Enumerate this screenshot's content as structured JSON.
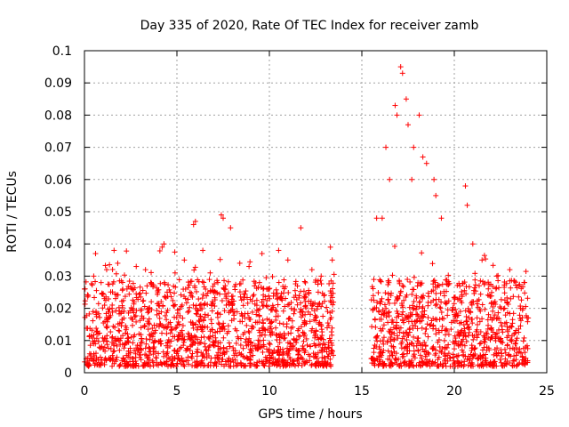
{
  "chart_data": {
    "type": "scatter",
    "title": "Day 335 of 2020, Rate Of TEC Index for receiver zamb",
    "xlabel": "GPS time / hours",
    "ylabel": "ROTI / TECUs",
    "xlim": [
      0,
      25
    ],
    "ylim": [
      0,
      0.1
    ],
    "xticks": [
      0,
      5,
      10,
      15,
      20,
      25
    ],
    "xtick_labels": [
      "0",
      "5",
      "10",
      "15",
      "20",
      "25"
    ],
    "yticks": [
      0,
      0.01,
      0.02,
      0.03,
      0.04,
      0.05,
      0.06,
      0.07,
      0.08,
      0.09,
      0.1
    ],
    "ytick_labels": [
      "0",
      "0.01",
      "0.02",
      "0.03",
      "0.04",
      "0.05",
      "0.06",
      "0.07",
      "0.08",
      "0.09",
      "0.1"
    ],
    "grid": true,
    "marker": "plus",
    "color": "#ff0000",
    "data_gap_hours": [
      13.5,
      15.5
    ],
    "series": [
      {
        "name": "ROTI",
        "points": [
          [
            0.2,
            0.024
          ],
          [
            0.5,
            0.03
          ],
          [
            0.6,
            0.037
          ],
          [
            0.9,
            0.028
          ],
          [
            1.2,
            0.032
          ],
          [
            1.6,
            0.038
          ],
          [
            1.8,
            0.034
          ],
          [
            2.3,
            0.026
          ],
          [
            2.8,
            0.033
          ],
          [
            3.3,
            0.032
          ],
          [
            3.6,
            0.028
          ],
          [
            4.2,
            0.039
          ],
          [
            4.3,
            0.04
          ],
          [
            4.9,
            0.031
          ],
          [
            5.4,
            0.035
          ],
          [
            5.9,
            0.046
          ],
          [
            6.0,
            0.047
          ],
          [
            6.4,
            0.038
          ],
          [
            6.8,
            0.031
          ],
          [
            7.4,
            0.049
          ],
          [
            7.5,
            0.048
          ],
          [
            7.9,
            0.045
          ],
          [
            8.4,
            0.034
          ],
          [
            8.9,
            0.033
          ],
          [
            9.6,
            0.037
          ],
          [
            10.5,
            0.038
          ],
          [
            11.0,
            0.035
          ],
          [
            11.7,
            0.045
          ],
          [
            12.3,
            0.032
          ],
          [
            12.8,
            0.03
          ],
          [
            13.3,
            0.039
          ],
          [
            13.4,
            0.035
          ],
          [
            15.8,
            0.048
          ],
          [
            16.1,
            0.048
          ],
          [
            16.3,
            0.07
          ],
          [
            16.5,
            0.06
          ],
          [
            16.8,
            0.083
          ],
          [
            16.9,
            0.08
          ],
          [
            17.1,
            0.095
          ],
          [
            17.2,
            0.093
          ],
          [
            17.4,
            0.085
          ],
          [
            17.5,
            0.077
          ],
          [
            17.7,
            0.06
          ],
          [
            17.8,
            0.07
          ],
          [
            18.1,
            0.08
          ],
          [
            18.3,
            0.067
          ],
          [
            18.5,
            0.065
          ],
          [
            18.9,
            0.06
          ],
          [
            19.0,
            0.055
          ],
          [
            19.3,
            0.048
          ],
          [
            20.6,
            0.058
          ],
          [
            20.7,
            0.052
          ],
          [
            21.0,
            0.04
          ],
          [
            21.5,
            0.035
          ],
          [
            22.3,
            0.03
          ],
          [
            23.0,
            0.032
          ],
          [
            23.5,
            0.027
          ],
          [
            23.8,
            0.028
          ]
        ],
        "baseline_band": [
          0.002,
          0.02
        ]
      }
    ]
  }
}
